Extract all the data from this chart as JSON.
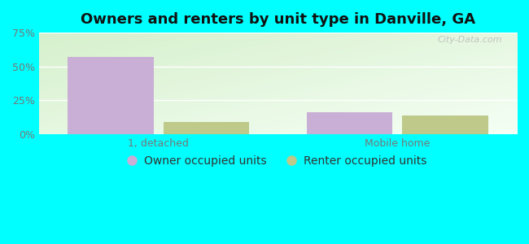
{
  "title": "Owners and renters by unit type in Danville, GA",
  "categories": [
    "1, detached",
    "Mobile home"
  ],
  "owner_values": [
    57,
    16
  ],
  "renter_values": [
    9,
    14
  ],
  "owner_color": "#c9aed6",
  "renter_color": "#bec98a",
  "bar_width": 0.18,
  "ylim": [
    0,
    75
  ],
  "yticks": [
    0,
    25,
    50,
    75
  ],
  "yticklabels": [
    "0%",
    "25%",
    "50%",
    "75%"
  ],
  "bg_color_topleft": "#d6f0cc",
  "bg_color_topright": "#e8f5f0",
  "bg_color_bottom": "#f0faf5",
  "outer_bg": "#00ffff",
  "grid_color": "#ffffff",
  "title_fontsize": 13,
  "legend_fontsize": 10,
  "tick_fontsize": 9,
  "watermark": "City-Data.com",
  "group_positions": [
    0.25,
    0.75
  ],
  "xlim": [
    0,
    1
  ]
}
